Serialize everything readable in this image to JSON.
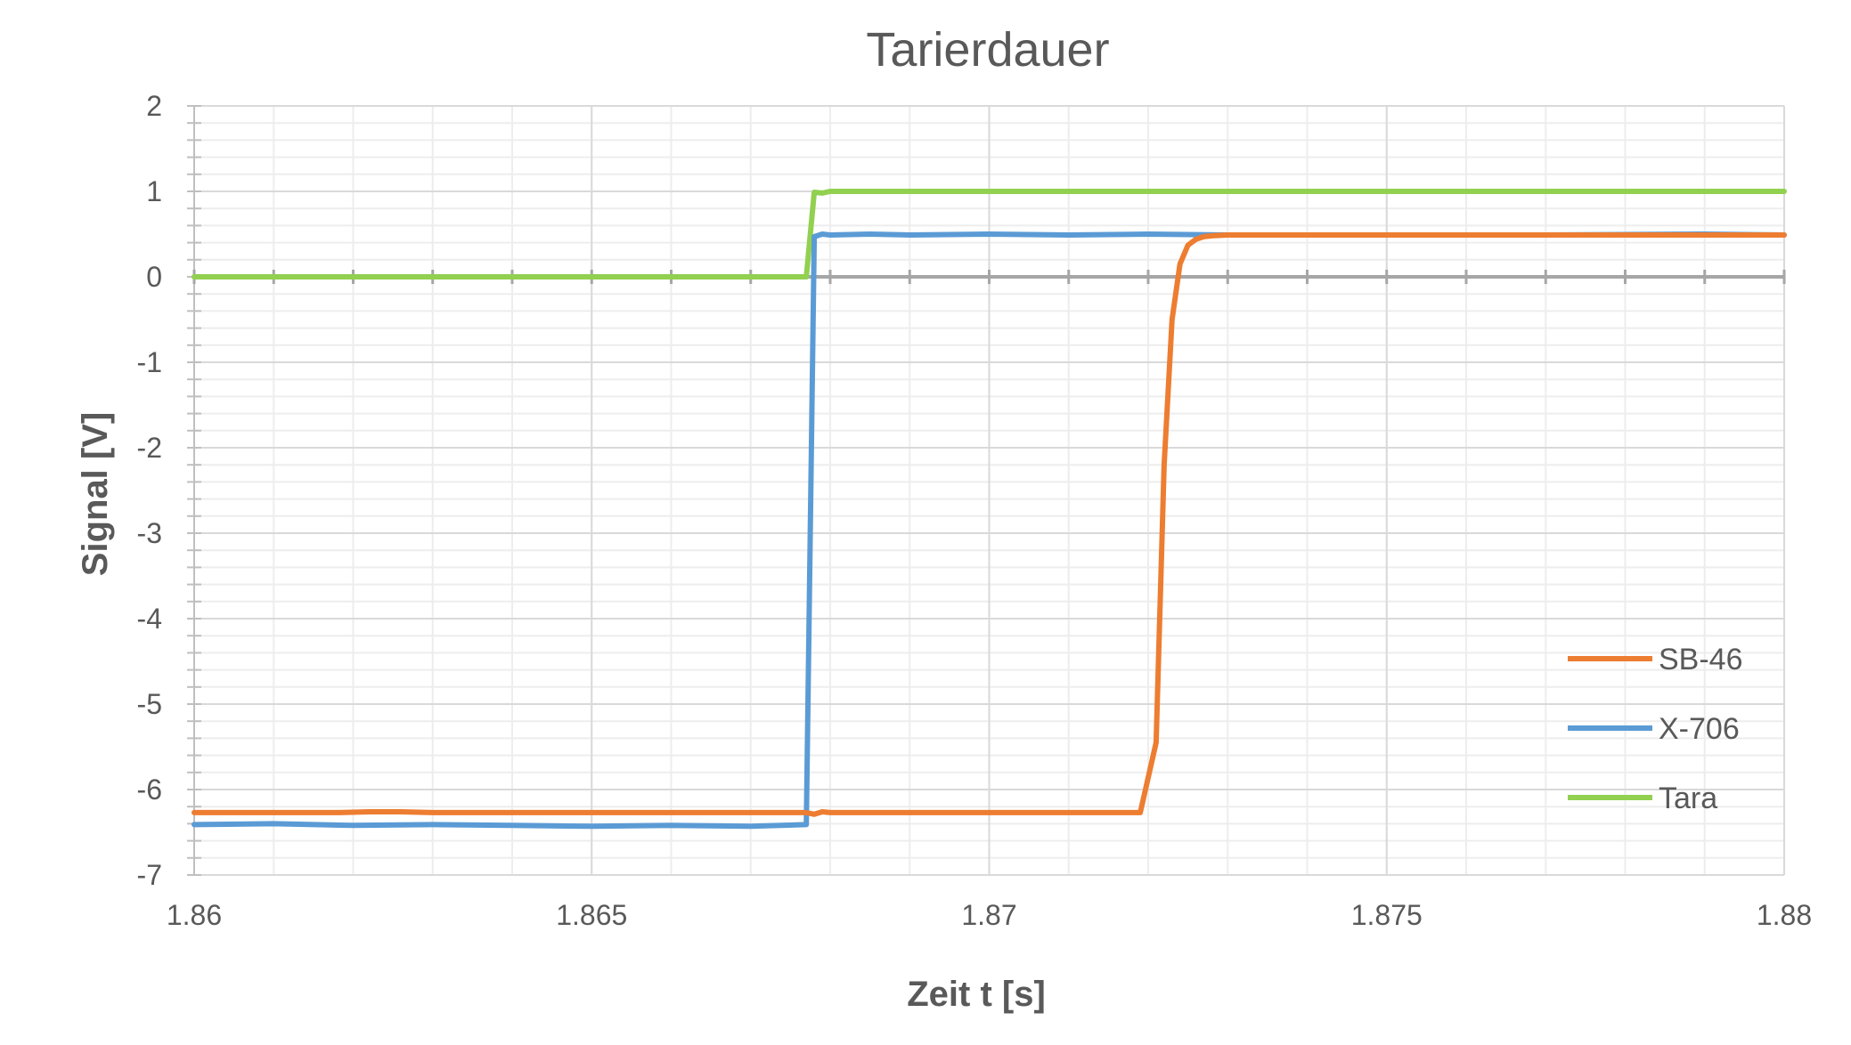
{
  "chart_data": {
    "type": "line",
    "title": "Tarierdauer",
    "xlabel": "Zeit t [s]",
    "ylabel": "Signal [V]",
    "xlim": [
      1.86,
      1.88
    ],
    "ylim": [
      -7,
      2
    ],
    "x_ticks": [
      1.86,
      1.865,
      1.87,
      1.875,
      1.88
    ],
    "x_tick_labels": [
      "1.86",
      "1.865",
      "1.87",
      "1.875",
      "1.88"
    ],
    "y_ticks": [
      2,
      1,
      0,
      -1,
      -2,
      -3,
      -4,
      -5,
      -6,
      -7
    ],
    "y_tick_labels": [
      "2",
      "1",
      "0",
      "-1",
      "-2",
      "-3",
      "-4",
      "-5",
      "-6",
      "-7"
    ],
    "x_minor_step": 0.001,
    "y_minor_step": 0.2,
    "grid": true,
    "legend_position": "bottom-right",
    "series": [
      {
        "name": "SB-46",
        "color": "#ED7D31",
        "x": [
          1.86,
          1.8618,
          1.8622,
          1.8626,
          1.863,
          1.864,
          1.865,
          1.866,
          1.867,
          1.8677,
          1.8678,
          1.8679,
          1.868,
          1.869,
          1.87,
          1.871,
          1.8719,
          1.8721,
          1.8722,
          1.8723,
          1.8724,
          1.8725,
          1.8726,
          1.8727,
          1.8728,
          1.873,
          1.875,
          1.878,
          1.88
        ],
        "y": [
          -6.27,
          -6.27,
          -6.26,
          -6.26,
          -6.27,
          -6.27,
          -6.27,
          -6.27,
          -6.27,
          -6.27,
          -6.29,
          -6.26,
          -6.27,
          -6.27,
          -6.27,
          -6.27,
          -6.27,
          -5.45,
          -2.2,
          -0.5,
          0.15,
          0.37,
          0.44,
          0.47,
          0.48,
          0.49,
          0.49,
          0.49,
          0.49
        ]
      },
      {
        "name": "X-706",
        "color": "#5B9BD5",
        "x": [
          1.86,
          1.861,
          1.862,
          1.863,
          1.864,
          1.865,
          1.866,
          1.867,
          1.8677,
          1.8678,
          1.8679,
          1.868,
          1.8685,
          1.869,
          1.87,
          1.871,
          1.872,
          1.873,
          1.875,
          1.877,
          1.879,
          1.88
        ],
        "y": [
          -6.41,
          -6.4,
          -6.42,
          -6.41,
          -6.42,
          -6.43,
          -6.42,
          -6.43,
          -6.41,
          0.47,
          0.5,
          0.49,
          0.5,
          0.49,
          0.5,
          0.49,
          0.5,
          0.49,
          0.49,
          0.49,
          0.5,
          0.49
        ]
      },
      {
        "name": "Tara",
        "color": "#92D050",
        "x": [
          1.86,
          1.8677,
          1.8678,
          1.8679,
          1.868,
          1.88
        ],
        "y": [
          0,
          0,
          0.99,
          0.98,
          1,
          1
        ]
      }
    ]
  }
}
